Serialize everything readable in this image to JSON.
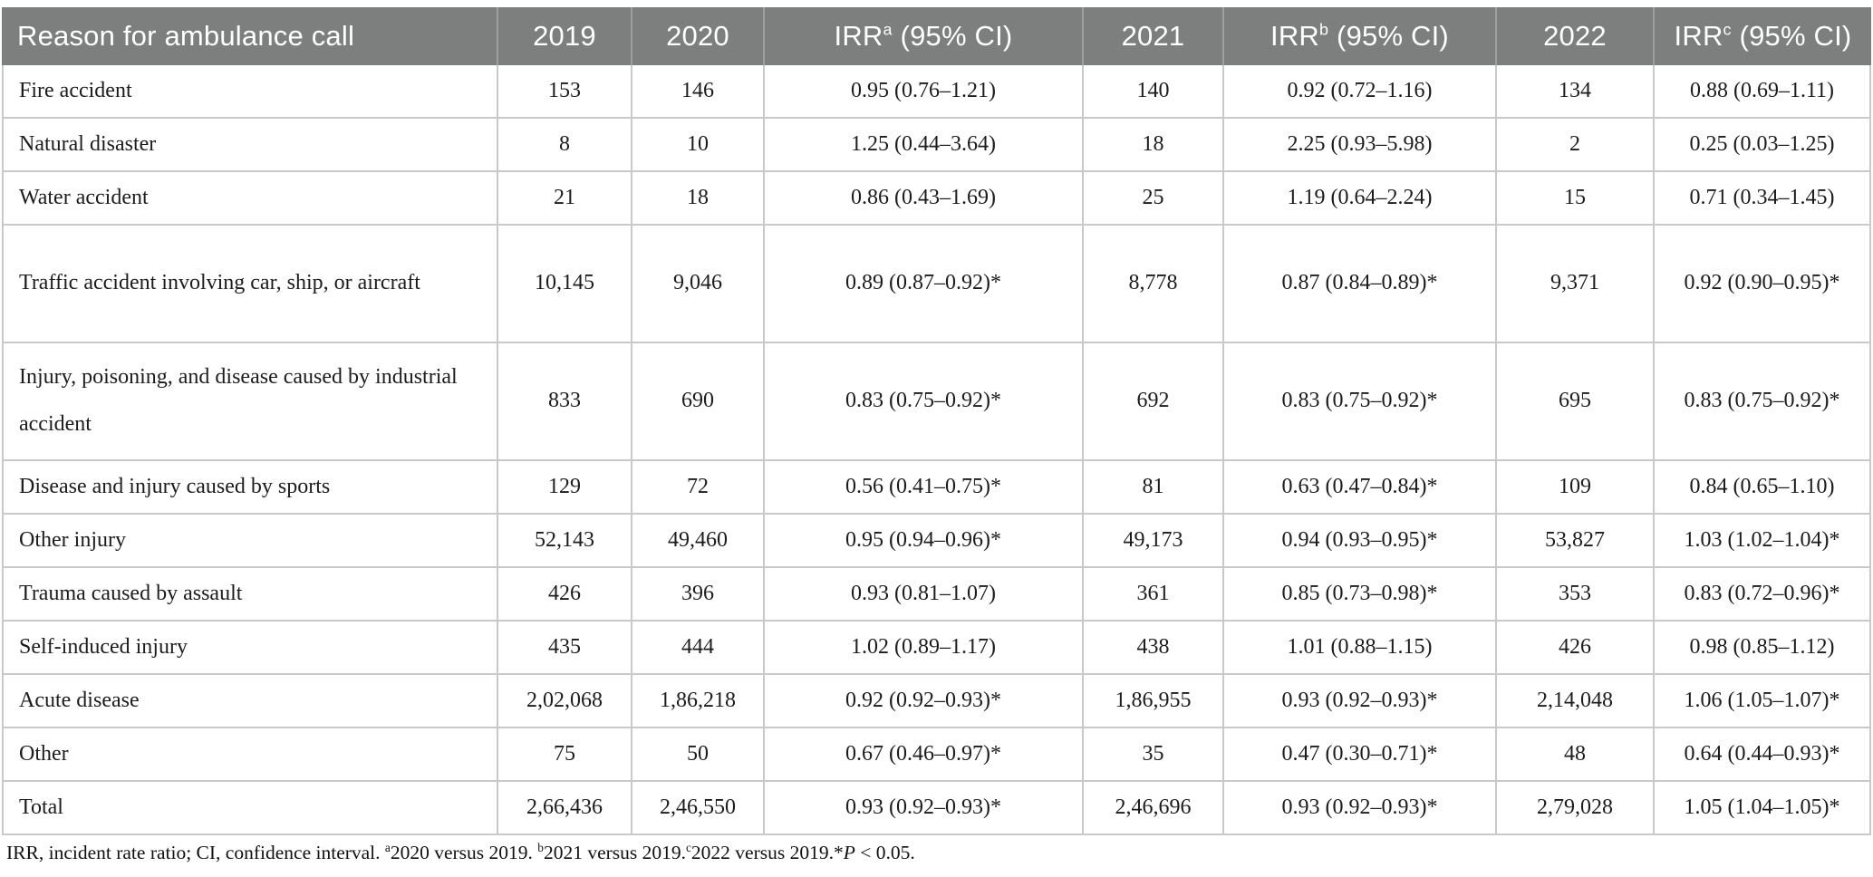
{
  "colors": {
    "header_bg": "#7d7e7e",
    "header_text": "#ffffff",
    "header_divider": "#9d9e9e",
    "grid_line": "#c9c9c9",
    "body_text": "#1c1c1c"
  },
  "table": {
    "columns": [
      {
        "pre": "Reason for ambulance call",
        "sup": "",
        "post": "",
        "align": "left"
      },
      {
        "pre": "2019",
        "sup": "",
        "post": "",
        "align": "center"
      },
      {
        "pre": "2020",
        "sup": "",
        "post": "",
        "align": "center"
      },
      {
        "pre": "IRR",
        "sup": "a",
        "post": " (95% CI)",
        "align": "center"
      },
      {
        "pre": "2021",
        "sup": "",
        "post": "",
        "align": "center"
      },
      {
        "pre": "IRR",
        "sup": "b",
        "post": " (95% CI)",
        "align": "center"
      },
      {
        "pre": "2022",
        "sup": "",
        "post": "",
        "align": "center"
      },
      {
        "pre": "IRR",
        "sup": "c",
        "post": " (95% CI)",
        "align": "center"
      }
    ],
    "rows": [
      [
        "Fire accident",
        "153",
        "146",
        "0.95 (0.76–1.21)",
        "140",
        "0.92 (0.72–1.16)",
        "134",
        "0.88 (0.69–1.11)"
      ],
      [
        "Natural disaster",
        "8",
        "10",
        "1.25 (0.44–3.64)",
        "18",
        "2.25 (0.93–5.98)",
        "2",
        "0.25 (0.03–1.25)"
      ],
      [
        "Water accident",
        "21",
        "18",
        "0.86 (0.43–1.69)",
        "25",
        "1.19 (0.64–2.24)",
        "15",
        "0.71 (0.34–1.45)"
      ],
      [
        "Traffic accident involving car, ship, or aircraft",
        "10,145",
        "9,046",
        "0.89 (0.87–0.92)*",
        "8,778",
        "0.87 (0.84–0.89)*",
        "9,371",
        "0.92 (0.90–0.95)*"
      ],
      [
        "Injury, poisoning, and disease caused by industrial accident",
        "833",
        "690",
        "0.83 (0.75–0.92)*",
        "692",
        "0.83 (0.75–0.92)*",
        "695",
        "0.83 (0.75–0.92)*"
      ],
      [
        "Disease and injury caused by sports",
        "129",
        "72",
        "0.56 (0.41–0.75)*",
        "81",
        "0.63 (0.47–0.84)*",
        "109",
        "0.84 (0.65–1.10)"
      ],
      [
        "Other injury",
        "52,143",
        "49,460",
        "0.95 (0.94–0.96)*",
        "49,173",
        "0.94 (0.93–0.95)*",
        "53,827",
        "1.03 (1.02–1.04)*"
      ],
      [
        "Trauma caused by assault",
        "426",
        "396",
        "0.93 (0.81–1.07)",
        "361",
        "0.85 (0.73–0.98)*",
        "353",
        "0.83 (0.72–0.96)*"
      ],
      [
        "Self-induced injury",
        "435",
        "444",
        "1.02 (0.89–1.17)",
        "438",
        "1.01 (0.88–1.15)",
        "426",
        "0.98 (0.85–1.12)"
      ],
      [
        "Acute disease",
        "2,02,068",
        "1,86,218",
        "0.92 (0.92–0.93)*",
        "1,86,955",
        "0.93 (0.92–0.93)*",
        "2,14,048",
        "1.06 (1.05–1.07)*"
      ],
      [
        "Other",
        "75",
        "50",
        "0.67 (0.46–0.97)*",
        "35",
        "0.47 (0.30–0.71)*",
        "48",
        "0.64 (0.44–0.93)*"
      ],
      [
        "Total",
        "2,66,436",
        "2,46,550",
        "0.93 (0.92–0.93)*",
        "2,46,696",
        "0.93 (0.92–0.93)*",
        "2,79,028",
        "1.05 (1.04–1.05)*"
      ]
    ],
    "tall_row_indexes": [
      3,
      4
    ]
  },
  "footnote": {
    "segments": [
      {
        "t": "IRR, incident rate ratio; CI, confidence interval. "
      },
      {
        "t": "a",
        "style": "sup"
      },
      {
        "t": "2020 versus 2019. "
      },
      {
        "t": "b",
        "style": "sup"
      },
      {
        "t": "2021 versus 2019."
      },
      {
        "t": "c",
        "style": "sup"
      },
      {
        "t": "2022 versus 2019.*"
      },
      {
        "t": "P",
        "style": "italic"
      },
      {
        "t": " < 0.05."
      }
    ]
  }
}
